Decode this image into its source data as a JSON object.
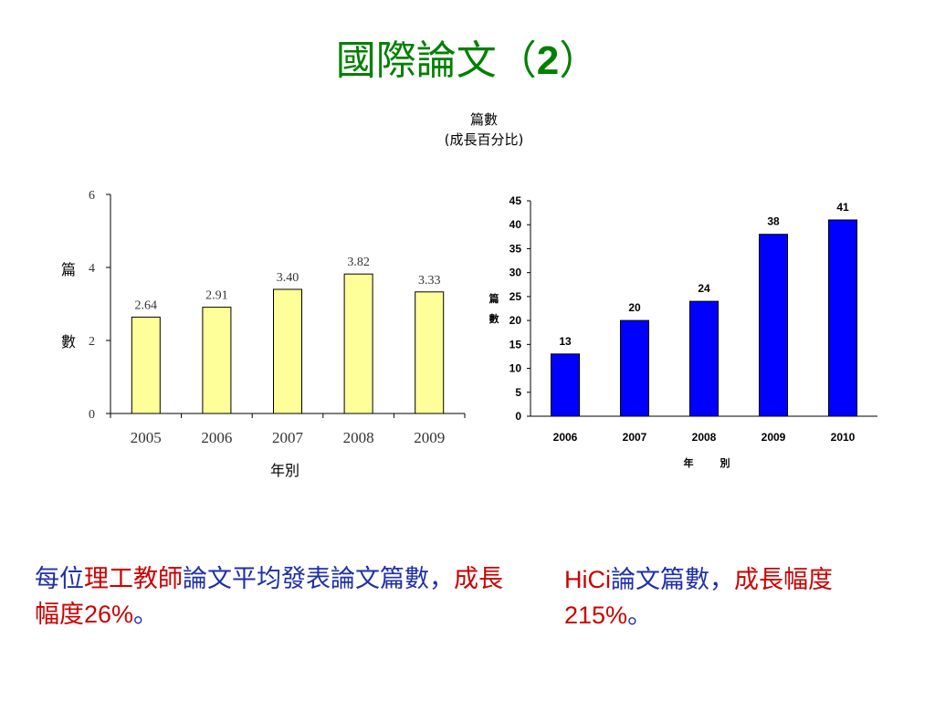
{
  "page": {
    "title_text": "國際論文（",
    "title_num": "2",
    "title_close": "）",
    "center_line1": "篇數",
    "center_line2": "(成長百分比)"
  },
  "chart_data": [
    {
      "type": "bar",
      "categories": [
        "2005",
        "2006",
        "2007",
        "2008",
        "2009"
      ],
      "values": [
        2.64,
        2.91,
        3.4,
        3.82,
        3.33
      ],
      "value_labels": [
        "2.64",
        "2.91",
        "3.40",
        "3.82",
        "3.33"
      ],
      "ylim": [
        0,
        6
      ],
      "yticks": [
        "0",
        "2",
        "4",
        "6"
      ],
      "ylabel_chars": [
        "篇",
        "數"
      ],
      "xlabel": "年別",
      "bar_color": "#ffff99",
      "bar_stroke": "#000000"
    },
    {
      "type": "bar",
      "categories": [
        "2006",
        "2007",
        "2008",
        "2009",
        "2010"
      ],
      "values": [
        13,
        20,
        24,
        38,
        41
      ],
      "value_labels": [
        "13",
        "20",
        "24",
        "38",
        "41"
      ],
      "ylim": [
        0,
        45
      ],
      "yticks": [
        "0",
        "5",
        "10",
        "15",
        "20",
        "25",
        "30",
        "35",
        "40",
        "45"
      ],
      "ylabel_chars": [
        "篇",
        "數"
      ],
      "xlabel_chars": [
        "年",
        "別"
      ],
      "bar_color": "#0000ff",
      "bar_stroke": "#000000"
    }
  ],
  "captions": {
    "left": {
      "s1": "每位",
      "s2": "理工教師",
      "s3": "論文平均發表論文篇數，",
      "s4": "成長幅度",
      "s5": "26%",
      "s6": "。"
    },
    "right": {
      "s1": "HiCi",
      "s2": "論文篇數，",
      "s3": "成長幅度",
      "s4": "215%",
      "s5": "。"
    }
  },
  "colors": {
    "title": "#008000",
    "caption_blue": "#1f2fa8",
    "caption_red": "#cc0000"
  }
}
